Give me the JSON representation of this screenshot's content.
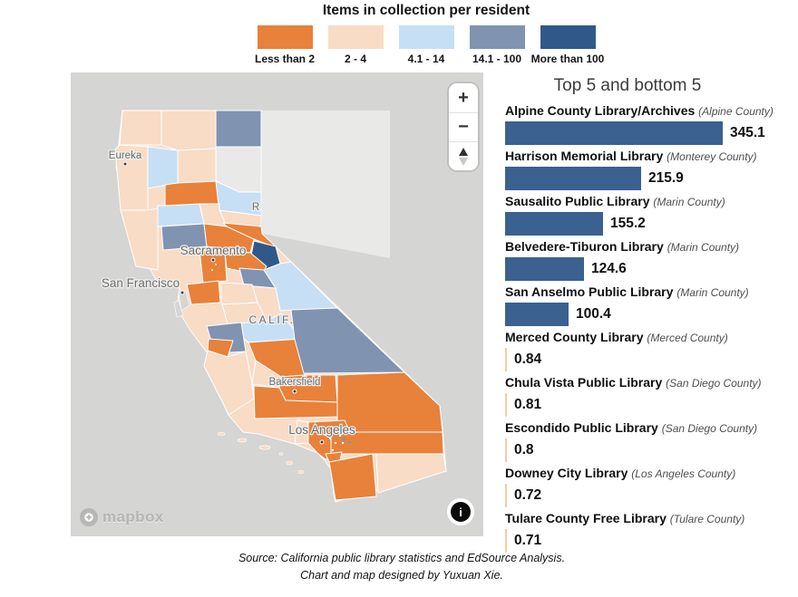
{
  "title": "Items in collection per resident",
  "legend": {
    "items": [
      {
        "label": "Less than 2",
        "color": "#E8813A"
      },
      {
        "label": "2 - 4",
        "color": "#F8DCC6"
      },
      {
        "label": "4.1 - 14",
        "color": "#C7DFF4"
      },
      {
        "label": "14.1 - 100",
        "color": "#8093B1"
      },
      {
        "label": "More than 100",
        "color": "#30598A"
      }
    ]
  },
  "map": {
    "controls": {
      "zoom_in": "+",
      "zoom_out": "−"
    },
    "logo_text": "mapbox",
    "attribution_icon": "i",
    "city_labels": [
      "Eureka",
      "Sacramento",
      "San Francisco",
      "Bakersfield",
      "Los Angeles"
    ],
    "state_label": "CALIF.",
    "partial_label": "R",
    "palette": {
      "less_than_2": "#E8813A",
      "2_to_4": "#F8DCC6",
      "4_1_to_14": "#C7DFF4",
      "14_1_to_100": "#8093B1",
      "more_than_100": "#30598A",
      "no_data": "#E9E9E7",
      "background": "#D5D5D3"
    }
  },
  "chart_data": {
    "type": "bar",
    "orientation": "horizontal",
    "title": "Top 5 and bottom 5",
    "max_value": 345.1,
    "colors": {
      "top": "#3A618F",
      "bottom": "#F6CBA4"
    },
    "bars": [
      {
        "library": "Alpine County Library/Archives",
        "county": "(Alpine County)",
        "value": 345.1,
        "value_display": "345.1",
        "group": "top"
      },
      {
        "library": "Harrison Memorial Library",
        "county": "(Monterey County)",
        "value": 215.9,
        "value_display": "215.9",
        "group": "top"
      },
      {
        "library": "Sausalito Public Library",
        "county": "(Marin County)",
        "value": 155.2,
        "value_display": "155.2",
        "group": "top"
      },
      {
        "library": "Belvedere-Tiburon Library",
        "county": "(Marin County)",
        "value": 124.6,
        "value_display": "124.6",
        "group": "top"
      },
      {
        "library": "San Anselmo Public Library",
        "county": "(Marin County)",
        "value": 100.4,
        "value_display": "100.4",
        "group": "top"
      },
      {
        "library": "Merced County Library",
        "county": "(Merced County)",
        "value": 0.84,
        "value_display": "0.84",
        "group": "bottom"
      },
      {
        "library": "Chula Vista Public Library",
        "county": "(San Diego County)",
        "value": 0.81,
        "value_display": "0.81",
        "group": "bottom"
      },
      {
        "library": "Escondido Public Library",
        "county": "(San Diego County)",
        "value": 0.8,
        "value_display": "0.8",
        "group": "bottom"
      },
      {
        "library": "Downey City Library",
        "county": "(Los Angeles County)",
        "value": 0.72,
        "value_display": "0.72",
        "group": "bottom"
      },
      {
        "library": "Tulare County Free Library",
        "county": "(Tulare County)",
        "value": 0.71,
        "value_display": "0.71",
        "group": "bottom"
      }
    ]
  },
  "footer": {
    "line1": "Source: California public library statistics and EdSource Analysis.",
    "line2": "Chart and map designed by Yuxuan Xie."
  }
}
